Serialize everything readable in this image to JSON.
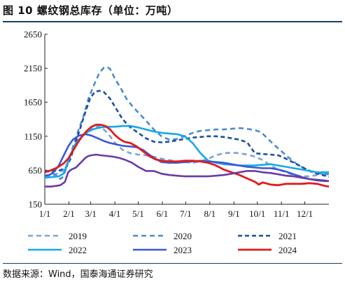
{
  "header": {
    "title": "图 10 螺纹钢总库存（单位：万吨）"
  },
  "footer": {
    "source": "数据来源：Wind，国泰海通证券研究"
  },
  "chart_data": {
    "type": "line",
    "title": "图 10 螺纹钢总库存（单位：万吨）",
    "xlabel": "",
    "ylabel": "",
    "xlim": [
      0,
      365
    ],
    "ylim": [
      150,
      2650
    ],
    "yticks": [
      150,
      650,
      1150,
      1650,
      2150,
      2650
    ],
    "xticks": [
      {
        "day": 0,
        "label": "1/1"
      },
      {
        "day": 31,
        "label": "2/1"
      },
      {
        "day": 59,
        "label": "3/1"
      },
      {
        "day": 90,
        "label": "4/1"
      },
      {
        "day": 120,
        "label": "5/1"
      },
      {
        "day": 151,
        "label": "6/1"
      },
      {
        "day": 181,
        "label": "7/1"
      },
      {
        "day": 212,
        "label": "8/1"
      },
      {
        "day": 243,
        "label": "9/1"
      },
      {
        "day": 273,
        "label": "10/1"
      },
      {
        "day": 304,
        "label": "11/1"
      },
      {
        "day": 334,
        "label": "12/1"
      }
    ],
    "grid": false,
    "legend_position": "bottom",
    "series": [
      {
        "name": "2019",
        "color": "#7aa3d6",
        "dash": "7,5",
        "width": 2.6,
        "x": [
          0,
          8,
          16,
          24,
          30,
          35,
          42,
          50,
          56,
          63,
          70,
          77,
          84,
          91,
          100,
          110,
          120,
          130,
          140,
          150,
          160,
          170,
          180,
          190,
          200,
          210,
          220,
          230,
          240,
          250,
          260,
          270,
          280,
          290,
          300,
          310,
          320,
          330,
          340,
          350,
          360,
          365
        ],
        "y": [
          560,
          570,
          600,
          650,
          780,
          920,
          1050,
          1170,
          1230,
          1280,
          1300,
          1240,
          1150,
          1040,
          950,
          900,
          880,
          870,
          850,
          820,
          800,
          780,
          770,
          760,
          780,
          820,
          870,
          900,
          910,
          900,
          880,
          850,
          800,
          720,
          660,
          620,
          580,
          560,
          560,
          580,
          610,
          630
        ]
      },
      {
        "name": "2020",
        "color": "#4b8bd1",
        "dash": "7,5",
        "width": 2.6,
        "x": [
          0,
          8,
          14,
          20,
          24,
          28,
          35,
          42,
          50,
          56,
          63,
          70,
          76,
          80,
          84,
          90,
          98,
          105,
          112,
          120,
          130,
          140,
          150,
          160,
          170,
          180,
          190,
          200,
          210,
          220,
          230,
          240,
          250,
          260,
          270,
          278,
          285,
          295,
          305,
          315,
          325,
          335,
          345,
          355,
          365
        ],
        "y": [
          650,
          620,
          580,
          520,
          560,
          700,
          950,
          1200,
          1450,
          1700,
          1900,
          2080,
          2160,
          2170,
          2140,
          2000,
          1850,
          1700,
          1600,
          1500,
          1380,
          1250,
          1150,
          1100,
          1110,
          1150,
          1200,
          1230,
          1240,
          1250,
          1250,
          1260,
          1270,
          1260,
          1240,
          1210,
          1130,
          1020,
          920,
          820,
          730,
          670,
          620,
          600,
          590
        ]
      },
      {
        "name": "2021",
        "color": "#1a4fa0",
        "dash": "6,4",
        "width": 2.6,
        "x": [
          0,
          10,
          20,
          28,
          33,
          38,
          45,
          52,
          58,
          64,
          70,
          76,
          84,
          92,
          100,
          110,
          120,
          130,
          140,
          150,
          160,
          170,
          180,
          190,
          200,
          210,
          220,
          230,
          240,
          250,
          260,
          270,
          280,
          290,
          300,
          310,
          320,
          330,
          340,
          350,
          360,
          365
        ],
        "y": [
          640,
          640,
          650,
          700,
          820,
          1000,
          1250,
          1500,
          1700,
          1800,
          1820,
          1800,
          1700,
          1550,
          1400,
          1280,
          1200,
          1120,
          1070,
          1060,
          1070,
          1090,
          1110,
          1130,
          1140,
          1150,
          1150,
          1140,
          1120,
          1100,
          1060,
          900,
          890,
          880,
          870,
          820,
          760,
          700,
          640,
          600,
          570,
          550
        ]
      },
      {
        "name": "2022",
        "color": "#17a8e6",
        "dash": "",
        "width": 2.6,
        "x": [
          0,
          10,
          18,
          24,
          28,
          33,
          40,
          48,
          56,
          64,
          72,
          80,
          90,
          100,
          110,
          120,
          130,
          140,
          150,
          160,
          170,
          180,
          190,
          200,
          210,
          220,
          230,
          240,
          250,
          260,
          270,
          280,
          290,
          300,
          310,
          320,
          330,
          340,
          350,
          360,
          365
        ],
        "y": [
          540,
          550,
          560,
          600,
          700,
          880,
          1050,
          1150,
          1220,
          1260,
          1280,
          1290,
          1290,
          1300,
          1300,
          1280,
          1250,
          1220,
          1200,
          1190,
          1180,
          1150,
          1050,
          900,
          790,
          760,
          740,
          730,
          720,
          720,
          720,
          730,
          740,
          720,
          700,
          680,
          660,
          640,
          620,
          620,
          620
        ]
      },
      {
        "name": "2023",
        "color": "#3a58d6",
        "dash": "",
        "width": 2.6,
        "x": [
          0,
          6,
          12,
          18,
          24,
          30,
          36,
          44,
          52,
          60,
          68,
          76,
          84,
          92,
          100,
          110,
          118,
          126,
          134,
          142,
          150,
          160,
          170,
          180,
          190,
          200,
          210,
          220,
          230,
          240,
          250,
          260,
          270,
          280,
          290,
          300,
          310,
          320,
          330,
          340,
          350,
          360,
          365
        ],
        "y": [
          570,
          580,
          630,
          720,
          860,
          1000,
          1100,
          1160,
          1180,
          1160,
          1120,
          1080,
          1050,
          1030,
          1010,
          1000,
          990,
          950,
          880,
          820,
          770,
          760,
          760,
          770,
          780,
          790,
          780,
          770,
          760,
          740,
          720,
          700,
          690,
          680,
          680,
          660,
          630,
          590,
          550,
          520,
          500,
          490,
          490
        ]
      },
      {
        "name": "2024",
        "color": "#e21b1b",
        "dash": "",
        "width": 2.8,
        "x": [
          0,
          8,
          16,
          24,
          30,
          36,
          42,
          48,
          54,
          60,
          66,
          72,
          78,
          84,
          90,
          96,
          102,
          110,
          118,
          126,
          134,
          142,
          150,
          160,
          170,
          180,
          190,
          200,
          210,
          220,
          230,
          240,
          250,
          260,
          270,
          275,
          280,
          290,
          300,
          310,
          320,
          330,
          340,
          350,
          360,
          365
        ],
        "y": [
          620,
          650,
          690,
          750,
          820,
          930,
          1050,
          1150,
          1230,
          1290,
          1320,
          1320,
          1300,
          1250,
          1170,
          1110,
          1070,
          1050,
          1000,
          930,
          860,
          810,
          790,
          780,
          780,
          790,
          790,
          780,
          760,
          720,
          660,
          620,
          580,
          530,
          480,
          440,
          470,
          440,
          430,
          450,
          450,
          450,
          460,
          450,
          420,
          410
        ]
      },
      {
        "name": "",
        "color": "#6a3aa8",
        "dash": "",
        "width": 2.6,
        "x": [
          0,
          8,
          14,
          20,
          26,
          30,
          34,
          40,
          46,
          52,
          56,
          60,
          66,
          72,
          80,
          88,
          96,
          104,
          112,
          120,
          130,
          140,
          150,
          160,
          170,
          180,
          190,
          200,
          210,
          220,
          230,
          240,
          250,
          260,
          270,
          280,
          290,
          300,
          310,
          320,
          330,
          340,
          350,
          360,
          365
        ],
        "y": [
          410,
          410,
          420,
          430,
          480,
          620,
          660,
          690,
          760,
          830,
          860,
          870,
          880,
          870,
          860,
          850,
          830,
          800,
          760,
          700,
          640,
          640,
          600,
          580,
          570,
          560,
          560,
          560,
          560,
          570,
          580,
          600,
          620,
          640,
          640,
          620,
          610,
          590,
          570,
          560,
          540,
          520,
          510,
          500,
          490
        ]
      }
    ]
  }
}
